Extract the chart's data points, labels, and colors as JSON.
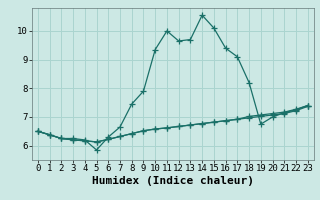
{
  "title": "",
  "xlabel": "Humidex (Indice chaleur)",
  "ylabel": "",
  "bg_color": "#cce8e4",
  "grid_color": "#aad4cf",
  "line_color": "#1a7068",
  "x_values": [
    0,
    1,
    2,
    3,
    4,
    5,
    6,
    7,
    8,
    9,
    10,
    11,
    12,
    13,
    14,
    15,
    16,
    17,
    18,
    19,
    20,
    21,
    22,
    23
  ],
  "line1_y": [
    6.5,
    6.38,
    6.25,
    6.25,
    6.2,
    5.85,
    6.3,
    6.65,
    7.45,
    7.9,
    9.35,
    10.0,
    9.65,
    9.7,
    10.55,
    10.1,
    9.4,
    9.1,
    8.2,
    6.75,
    7.0,
    7.15,
    7.25,
    7.4
  ],
  "line2_y": [
    6.5,
    6.38,
    6.25,
    6.2,
    6.17,
    6.13,
    6.22,
    6.32,
    6.42,
    6.52,
    6.58,
    6.62,
    6.67,
    6.72,
    6.77,
    6.82,
    6.87,
    6.92,
    6.97,
    7.02,
    7.07,
    7.12,
    7.22,
    7.37
  ],
  "line3_y": [
    6.5,
    6.38,
    6.25,
    6.2,
    6.17,
    6.13,
    6.22,
    6.32,
    6.42,
    6.52,
    6.58,
    6.62,
    6.67,
    6.72,
    6.77,
    6.82,
    6.87,
    6.92,
    7.02,
    7.07,
    7.12,
    7.17,
    7.27,
    7.4
  ],
  "ylim": [
    5.5,
    10.8
  ],
  "xlim": [
    -0.5,
    23.5
  ],
  "yticks": [
    6,
    7,
    8,
    9,
    10
  ],
  "xticks": [
    0,
    1,
    2,
    3,
    4,
    5,
    6,
    7,
    8,
    9,
    10,
    11,
    12,
    13,
    14,
    15,
    16,
    17,
    18,
    19,
    20,
    21,
    22,
    23
  ],
  "marker": "+",
  "markersize": 4,
  "linewidth": 0.9,
  "xlabel_fontsize": 8,
  "tick_fontsize": 6.5
}
